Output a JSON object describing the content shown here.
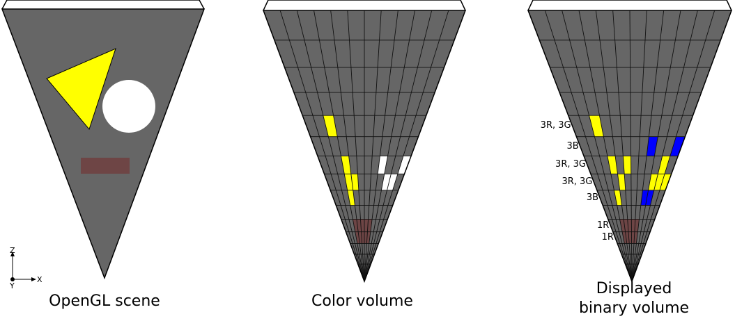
{
  "captions": {
    "opengl": "OpenGL scene",
    "color": "Color volume",
    "binary_line1": "Displayed",
    "binary_line2": "binary volume"
  },
  "axes": {
    "z": "Z",
    "x": "X",
    "y": "Y"
  },
  "row_labels": [
    "3R, 3G",
    "3B",
    "3R, 3G",
    "3R, 3G",
    "3B",
    "1R",
    "1R"
  ],
  "colors": {
    "background": "#ffffff",
    "scene_gray": "#666666",
    "grid_line": "#111111",
    "yellow": "#ffff00",
    "white": "#ffffff",
    "blue": "#0000ff",
    "brown": "#6e4545"
  },
  "grid": {
    "columns": 12,
    "rows": 16
  },
  "color_volume_cells": {
    "yellow": [
      [
        4,
        2
      ],
      [
        6,
        3
      ],
      [
        7,
        3
      ],
      [
        8,
        3
      ],
      [
        7,
        4
      ]
    ],
    "white": [
      [
        6,
        8
      ],
      [
        6,
        11
      ],
      [
        7,
        9
      ],
      [
        7,
        10
      ]
    ]
  },
  "binary_volume_cells": {
    "yellow": [
      [
        4,
        2
      ],
      [
        6,
        3
      ],
      [
        6,
        5
      ],
      [
        6,
        10
      ],
      [
        7,
        4
      ],
      [
        7,
        9
      ],
      [
        7,
        11
      ],
      [
        8,
        3
      ],
      [
        7,
        10
      ]
    ],
    "blue": [
      [
        5,
        8
      ],
      [
        5,
        11
      ],
      [
        8,
        8
      ],
      [
        8,
        9
      ]
    ]
  },
  "brown_block": {
    "row_start": 10,
    "row_end": 11,
    "col_start": 3,
    "col_end": 7
  }
}
